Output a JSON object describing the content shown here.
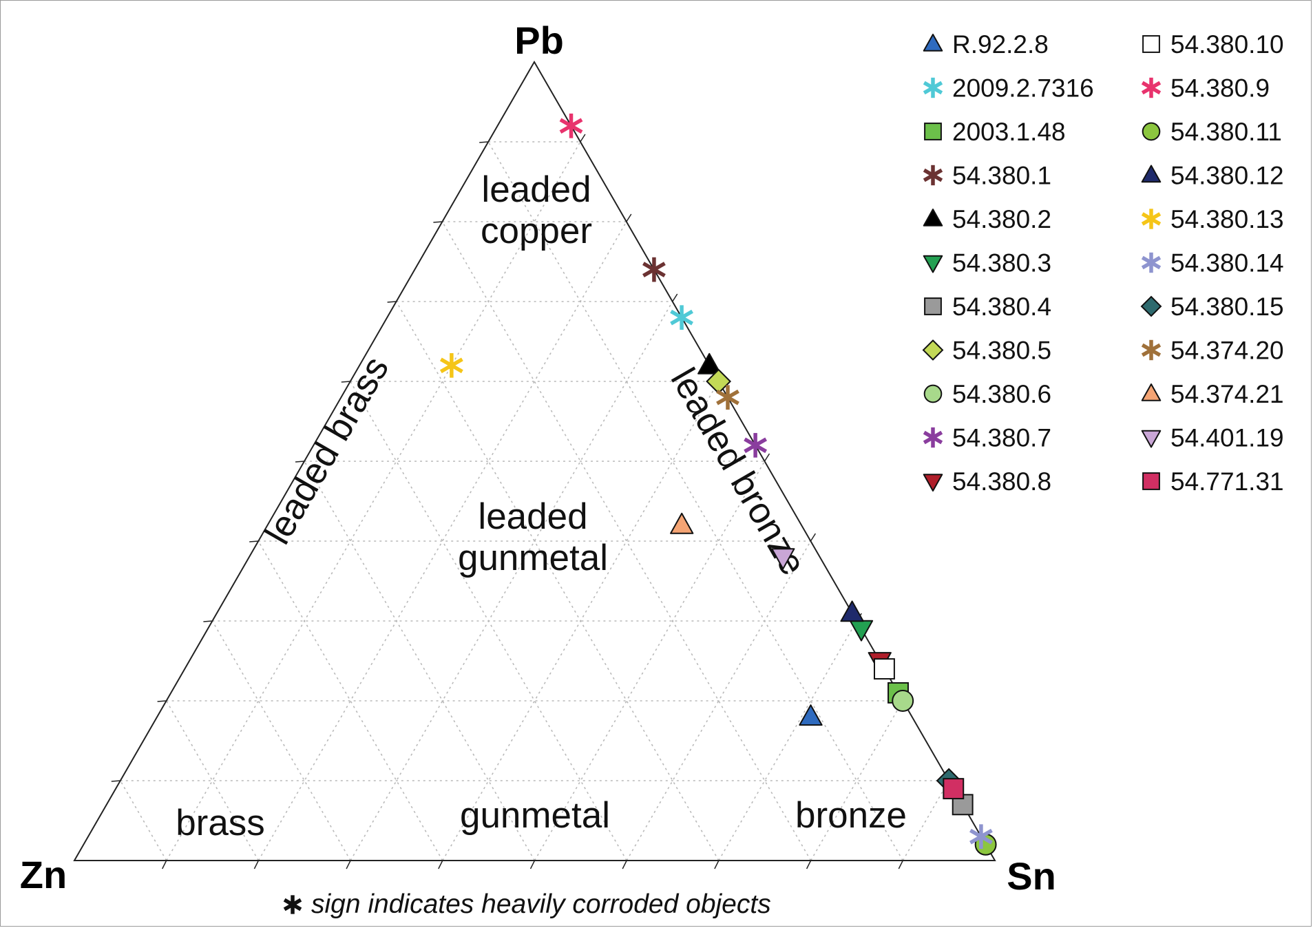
{
  "chart_data": {
    "type": "ternary-scatter",
    "vertices": {
      "top": "Pb",
      "left": "Zn",
      "right": "Sn"
    },
    "grid": true,
    "grid_steps": 10,
    "regions": [
      {
        "id": "leaded-copper",
        "lines": [
          "leaded",
          "copper"
        ]
      },
      {
        "id": "leaded-brass",
        "lines": [
          "leaded brass"
        ]
      },
      {
        "id": "leaded-bronze",
        "lines": [
          "leaded bronze"
        ]
      },
      {
        "id": "leaded-gunmetal",
        "lines": [
          "leaded",
          "gunmetal"
        ]
      },
      {
        "id": "brass",
        "lines": [
          "brass"
        ]
      },
      {
        "id": "gunmetal",
        "lines": [
          "gunmetal"
        ]
      },
      {
        "id": "bronze",
        "lines": [
          "bronze"
        ]
      }
    ],
    "note": "sign indicates heavily corroded objects",
    "legend_position": "top-right",
    "series": [
      {
        "name": "R.92.2.8",
        "marker": "triangle-up",
        "color": "#2f6bbf",
        "pb": 0.18,
        "sn": 0.71,
        "zn": 0.11
      },
      {
        "name": "2009.2.7316",
        "marker": "asterisk",
        "color": "#4fc9d6",
        "pb": 0.68,
        "sn": 0.32,
        "zn": 0.0
      },
      {
        "name": "2003.1.48",
        "marker": "square",
        "color": "#6cc04a",
        "pb": 0.21,
        "sn": 0.79,
        "zn": 0.0
      },
      {
        "name": "54.380.1",
        "marker": "asterisk",
        "color": "#6b3232",
        "pb": 0.74,
        "sn": 0.26,
        "zn": 0.0
      },
      {
        "name": "54.380.2",
        "marker": "triangle-up",
        "color": "#000000",
        "pb": 0.62,
        "sn": 0.38,
        "zn": 0.0
      },
      {
        "name": "54.380.3",
        "marker": "triangle-down",
        "color": "#23a052",
        "pb": 0.29,
        "sn": 0.71,
        "zn": 0.0
      },
      {
        "name": "54.380.4",
        "marker": "square",
        "color": "#9a9a9a",
        "pb": 0.07,
        "sn": 0.93,
        "zn": 0.0
      },
      {
        "name": "54.380.5",
        "marker": "diamond",
        "color": "#c3d957",
        "pb": 0.6,
        "sn": 0.4,
        "zn": 0.0
      },
      {
        "name": "54.380.6",
        "marker": "circle",
        "color": "#a8d98b",
        "pb": 0.2,
        "sn": 0.8,
        "zn": 0.0
      },
      {
        "name": "54.380.7",
        "marker": "asterisk",
        "color": "#8a3d9e",
        "pb": 0.52,
        "sn": 0.48,
        "zn": 0.0
      },
      {
        "name": "54.380.8",
        "marker": "triangle-down",
        "color": "#b01e2a",
        "pb": 0.25,
        "sn": 0.75,
        "zn": 0.0
      },
      {
        "name": "54.380.10",
        "marker": "square-open",
        "color": "#ffffff",
        "pb": 0.24,
        "sn": 0.76,
        "zn": 0.0
      },
      {
        "name": "54.380.9",
        "marker": "asterisk",
        "color": "#e8336d",
        "pb": 0.92,
        "sn": 0.08,
        "zn": 0.0
      },
      {
        "name": "54.380.11",
        "marker": "circle",
        "color": "#8cc63f",
        "pb": 0.02,
        "sn": 0.98,
        "zn": 0.0
      },
      {
        "name": "54.380.12",
        "marker": "triangle-up",
        "color": "#1f2a6b",
        "pb": 0.31,
        "sn": 0.69,
        "zn": 0.0
      },
      {
        "name": "54.380.13",
        "marker": "asterisk",
        "color": "#f5c518",
        "pb": 0.62,
        "sn": 0.1,
        "zn": 0.28
      },
      {
        "name": "54.380.14",
        "marker": "asterisk",
        "color": "#8e94cf",
        "pb": 0.03,
        "sn": 0.97,
        "zn": 0.0
      },
      {
        "name": "54.380.15",
        "marker": "diamond",
        "color": "#2e6a6e",
        "pb": 0.1,
        "sn": 0.9,
        "zn": 0.0
      },
      {
        "name": "54.374.20",
        "marker": "asterisk",
        "color": "#a0713a",
        "pb": 0.58,
        "sn": 0.42,
        "zn": 0.0
      },
      {
        "name": "54.374.21",
        "marker": "triangle-up",
        "color": "#f4a474",
        "pb": 0.42,
        "sn": 0.45,
        "zn": 0.13
      },
      {
        "name": "54.401.19",
        "marker": "triangle-down",
        "color": "#c9a6d6",
        "pb": 0.38,
        "sn": 0.58,
        "zn": 0.04
      },
      {
        "name": "54.771.31",
        "marker": "square",
        "color": "#d12f63",
        "pb": 0.09,
        "sn": 0.91,
        "zn": 0.0
      }
    ]
  }
}
